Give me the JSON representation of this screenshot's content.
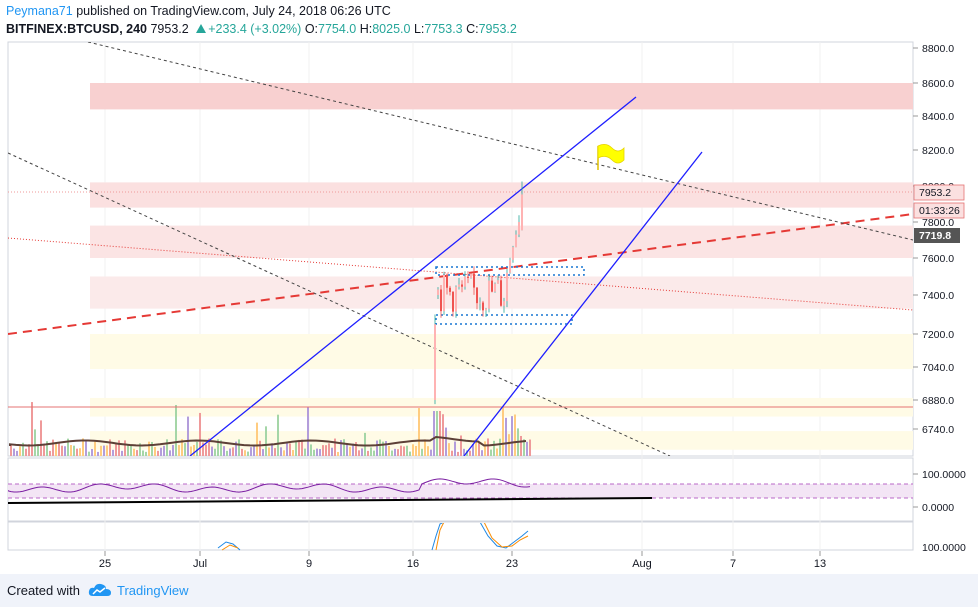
{
  "header": {
    "author": "Peymana71",
    "published_text": "published on TradingView.com, July 24, 2018 06:26 UTC",
    "symbol": "BITFINEX:BTCUSD, 240",
    "last": "7953.2",
    "change": "+233.4 (+3.02%)",
    "open_label": "O:",
    "open": "7754.0",
    "high_label": "H:",
    "high": "8025.0",
    "low_label": "L:",
    "low": "7753.3",
    "close_label": "C:",
    "close": "7953.2"
  },
  "price_axis": {
    "labels": [
      "8800.0",
      "8600.0",
      "8400.0",
      "8200.0",
      "8000.0",
      "7800.0",
      "7600.0",
      "7400.0",
      "7200.0",
      "7040.0",
      "6880.0",
      "6740.0"
    ],
    "last_price_tag": "7953.2",
    "countdown_tag": "01:33:26",
    "line_price_tag": "7719.8"
  },
  "rsi_axis": {
    "labels": [
      "100.0000",
      "0.0000"
    ]
  },
  "osc_axis": {
    "labels": [
      "100.0000"
    ]
  },
  "time_axis": {
    "labels": [
      "25",
      "Jul",
      "9",
      "16",
      "23",
      "Aug",
      "7",
      "13"
    ]
  },
  "chart_data": {
    "type": "candlestick",
    "symbol": "BITFINEX:BTCUSD",
    "interval": "240",
    "last_bar": {
      "open": 7754.0,
      "high": 8025.0,
      "low": 7753.3,
      "close": 7953.2,
      "change": 233.4,
      "change_pct": 3.02
    },
    "price_ticks": [
      8800,
      8600,
      8400,
      8200,
      8000,
      7800,
      7600,
      7400,
      7200,
      7040,
      6880,
      6740
    ],
    "time_ticks": [
      "25",
      "Jul",
      "9",
      "16",
      "23",
      "Aug",
      "7",
      "13"
    ],
    "horizontal_lines": [
      7953.2,
      6860
    ],
    "zones": [
      {
        "from": 8440,
        "to": 8600,
        "color": "#f8d0d0"
      },
      {
        "from": 7880,
        "to": 8020,
        "color": "#fbe0e0"
      },
      {
        "from": 7600,
        "to": 7780,
        "color": "#fbe4e4"
      },
      {
        "from": 7330,
        "to": 7500,
        "color": "#fbeaea"
      },
      {
        "from": 7030,
        "to": 7200,
        "color": "#fffbe6"
      },
      {
        "from": 6800,
        "to": 6890,
        "color": "#fffbe6"
      },
      {
        "from": 6640,
        "to": 6730,
        "color": "#fffbe6"
      }
    ],
    "rsi_levels": [
      100,
      0
    ],
    "oscillator_levels": [
      100
    ]
  },
  "colors": {
    "accent": "#2196f3",
    "up": "#26a69a",
    "down": "#ef5350",
    "trend_red": "#e53935",
    "channel_blue": "#1e1eff",
    "flag": "#ffff00",
    "axis_bg": "#ffffff"
  },
  "footer": {
    "created_with": "Created with",
    "brand": "TradingView"
  }
}
